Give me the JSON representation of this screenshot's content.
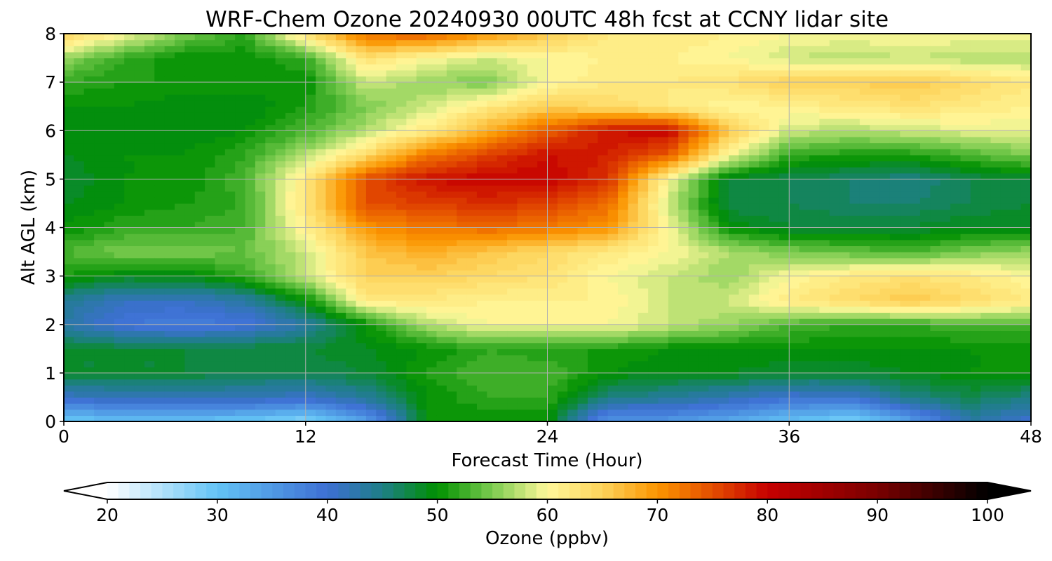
{
  "chart_data": {
    "type": "heatmap",
    "title": "WRF-Chem Ozone  20240930 00UTC 48h fcst at CCNY lidar site",
    "xlabel": "Forecast Time (Hour)",
    "ylabel": "Alt AGL (km)",
    "xlim": [
      0,
      48
    ],
    "ylim": [
      0,
      8
    ],
    "x_ticks": [
      0,
      12,
      24,
      36,
      48
    ],
    "y_ticks": [
      0,
      1,
      2,
      3,
      4,
      5,
      6,
      7,
      8
    ],
    "grid": true,
    "x": [
      0,
      3,
      6,
      9,
      12,
      15,
      18,
      21,
      24,
      27,
      30,
      33,
      36,
      39,
      42,
      45,
      48
    ],
    "y": [
      0,
      0.5,
      1,
      1.5,
      2,
      2.5,
      3,
      3.5,
      4,
      4.5,
      5,
      5.5,
      6,
      6.5,
      7,
      7.5,
      8
    ],
    "z": [
      [
        29,
        30,
        30,
        29,
        27,
        34,
        50,
        50,
        50,
        35,
        35,
        33,
        30,
        28,
        34,
        43,
        40
      ],
      [
        41,
        42,
        42,
        42,
        41,
        44,
        50,
        52,
        52,
        45,
        44,
        42,
        40,
        40,
        45,
        47,
        45
      ],
      [
        48,
        48,
        48,
        47,
        47,
        48,
        51,
        53,
        53,
        50,
        49,
        49,
        48,
        48,
        49,
        50,
        50
      ],
      [
        48,
        48,
        48,
        48,
        48,
        49,
        50,
        52,
        51,
        51,
        50,
        50,
        50,
        50,
        50,
        50,
        50
      ],
      [
        43,
        39,
        38,
        39,
        43,
        50,
        57,
        60,
        60,
        60,
        58,
        56,
        53,
        52,
        52,
        53,
        53
      ],
      [
        44,
        41,
        41,
        43,
        50,
        62,
        62,
        61,
        61,
        61,
        58,
        58,
        62,
        64,
        66,
        64,
        62
      ],
      [
        51,
        49,
        49,
        52,
        58,
        65,
        65,
        64,
        63,
        60,
        58,
        56,
        60,
        62,
        63,
        62,
        60
      ],
      [
        53,
        55,
        55,
        54,
        58,
        66,
        68,
        66,
        64,
        62,
        60,
        57,
        55,
        54,
        53,
        55,
        56
      ],
      [
        50,
        52,
        52,
        53,
        61,
        70,
        72,
        73,
        72,
        70,
        60,
        50,
        48,
        48,
        48,
        49,
        49
      ],
      [
        49,
        50,
        51,
        52,
        63,
        75,
        76,
        77,
        76,
        73,
        58,
        47,
        47,
        46,
        46,
        47,
        48
      ],
      [
        48,
        50,
        50,
        53,
        62,
        75,
        79,
        80,
        80,
        77,
        60,
        48,
        47,
        46,
        45,
        47,
        48
      ],
      [
        49,
        50,
        50,
        52,
        57,
        64,
        72,
        76,
        79,
        78,
        74,
        60,
        52,
        51,
        51,
        53,
        55
      ],
      [
        49,
        49,
        49,
        50,
        53,
        57,
        62,
        68,
        74,
        79,
        80,
        66,
        58,
        57,
        58,
        59,
        59
      ],
      [
        50,
        50,
        49,
        49,
        51,
        55,
        58,
        62,
        65,
        64,
        62,
        60,
        61,
        62,
        63,
        62,
        61
      ],
      [
        52,
        51,
        51,
        51,
        50,
        58,
        56,
        55,
        60,
        62,
        62,
        63,
        65,
        65,
        66,
        64,
        62
      ],
      [
        56,
        52,
        50,
        50,
        52,
        63,
        60,
        58,
        60,
        61,
        61,
        60,
        58,
        57,
        58,
        57,
        57
      ],
      [
        65,
        60,
        55,
        52,
        63,
        73,
        74,
        70,
        66,
        62,
        62,
        61,
        60,
        60,
        60,
        60,
        60
      ]
    ],
    "colorbar": {
      "label": "Ozone  (ppbv)",
      "min": 20,
      "max": 100,
      "ticks": [
        20,
        30,
        40,
        50,
        60,
        70,
        80,
        90,
        100
      ],
      "extend": "both",
      "stops": [
        {
          "v": 20,
          "c": "#ffffff"
        },
        {
          "v": 30,
          "c": "#63c3f5"
        },
        {
          "v": 40,
          "c": "#3d6fd3"
        },
        {
          "v": 45,
          "c": "#1e7f86"
        },
        {
          "v": 50,
          "c": "#009000"
        },
        {
          "v": 55,
          "c": "#7ccc50"
        },
        {
          "v": 60,
          "c": "#fff89a"
        },
        {
          "v": 65,
          "c": "#fdd35b"
        },
        {
          "v": 70,
          "c": "#fb9500"
        },
        {
          "v": 75,
          "c": "#e44e00"
        },
        {
          "v": 80,
          "c": "#c60000"
        },
        {
          "v": 90,
          "c": "#7a0000"
        },
        {
          "v": 100,
          "c": "#000000"
        }
      ]
    }
  }
}
